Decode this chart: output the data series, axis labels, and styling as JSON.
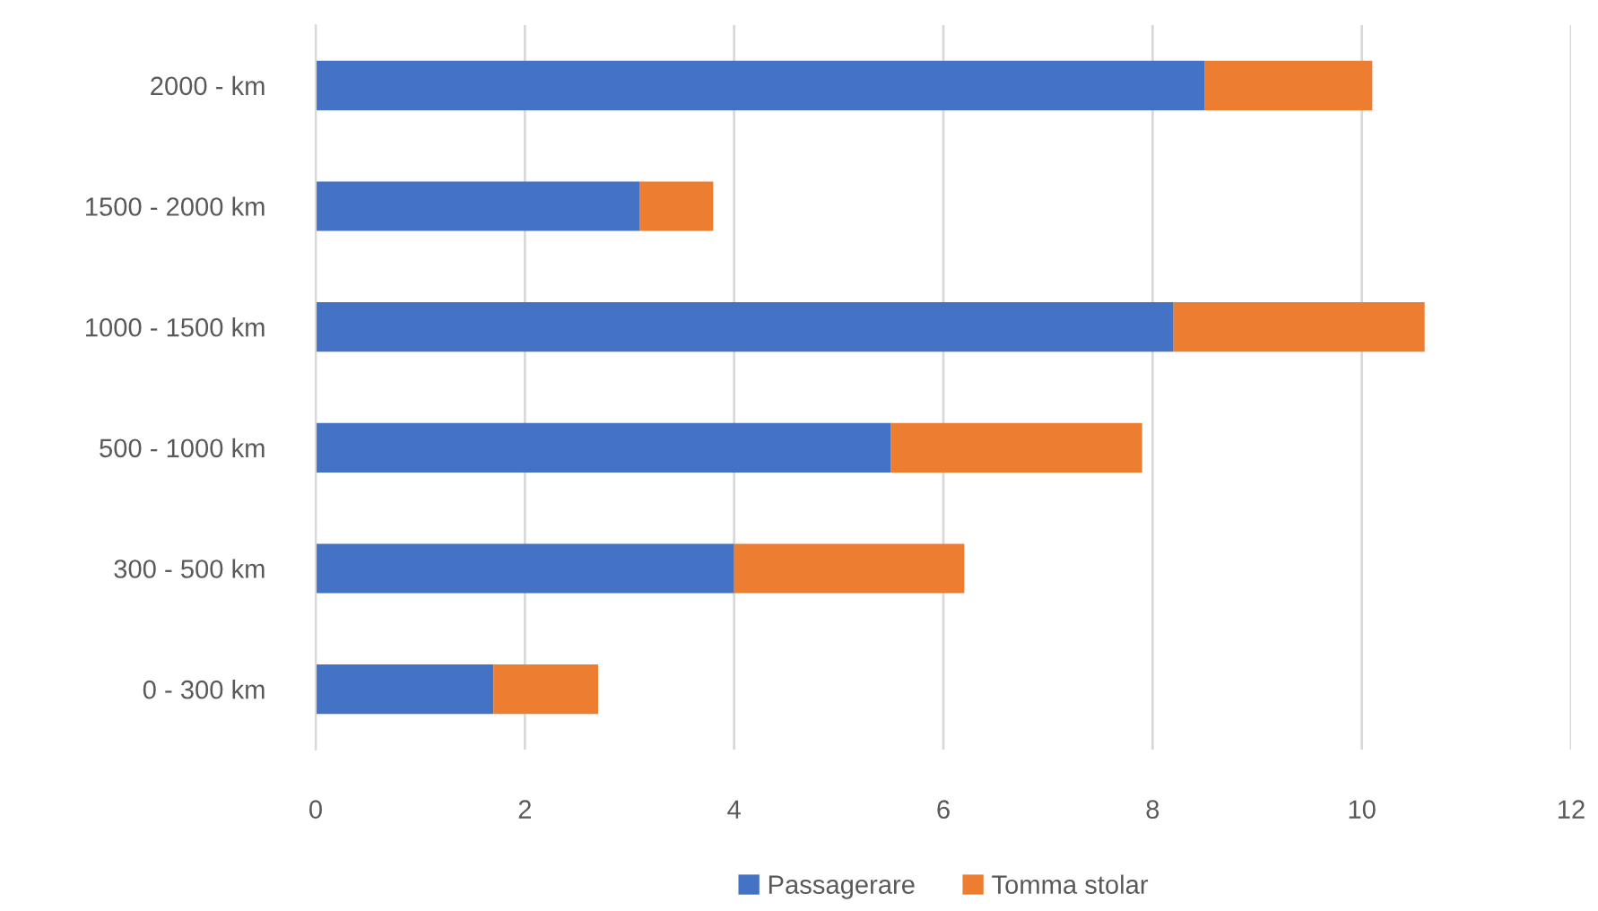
{
  "chart_data": {
    "type": "bar",
    "orientation": "horizontal",
    "stacked": true,
    "categories": [
      "2000 - km",
      "1500 - 2000 km",
      "1000 - 1500 km",
      "500 - 1000 km",
      "300 - 500 km",
      "0 - 300 km"
    ],
    "series": [
      {
        "name": "Passagerare",
        "color": "#4472c4",
        "values": [
          8.5,
          3.1,
          8.2,
          5.5,
          4.0,
          1.7
        ]
      },
      {
        "name": "Tomma stolar",
        "color": "#ed7d31",
        "values": [
          1.6,
          0.7,
          2.4,
          2.4,
          2.2,
          1.0
        ]
      }
    ],
    "xlim": [
      0,
      12
    ],
    "xticks": [
      0,
      2,
      4,
      6,
      8,
      10,
      12
    ],
    "grid": "x",
    "legend": "bottom"
  }
}
